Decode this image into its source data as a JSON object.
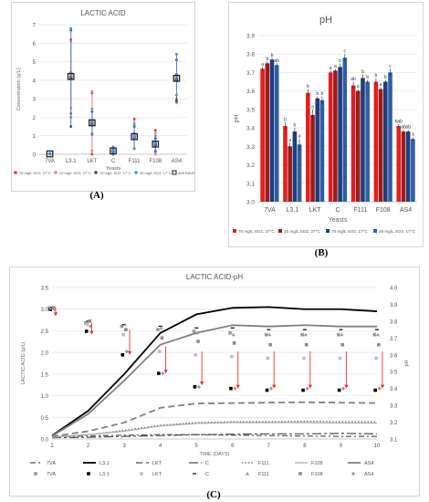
{
  "panel_labels": {
    "a": "(A)",
    "b": "(B)",
    "c": "(C)"
  },
  "chart_data": [
    {
      "id": "A",
      "type": "scatter",
      "title": "LACTIC ACID",
      "xlabel": "Yeasts",
      "ylabel": "Concentration (g/L)",
      "ylim": [
        0,
        7
      ],
      "yticks": [
        0,
        1,
        2,
        3,
        4,
        5,
        6,
        7
      ],
      "categories": [
        "7VA",
        "L3.1",
        "LKT",
        "C",
        "F111",
        "F108",
        "AS4"
      ],
      "grid": true,
      "legend_position": "bottom",
      "series": [
        {
          "name": "75 mg/L SO2, 27°C",
          "color": "#e8322c",
          "values": [
            0.02,
            4.2,
            1.6,
            0.15,
            1.1,
            0.6,
            4.1
          ],
          "err": [
            0.02,
            2.0,
            1.7,
            0.25,
            0.8,
            0.7,
            1.3
          ]
        },
        {
          "name": "25 mg/L SO2, 27°C",
          "color": "#e8838a",
          "values": [
            0.02,
            4.3,
            1.8,
            0.2,
            1.0,
            0.55,
            4.2
          ],
          "err": [
            0.02,
            1.8,
            1.6,
            0.2,
            0.7,
            0.6,
            1.2
          ]
        },
        {
          "name": "75 mg/L SO2, 17°C",
          "color": "#2e4f8c",
          "values": [
            0.02,
            4.1,
            1.7,
            0.15,
            0.9,
            0.5,
            4.0
          ],
          "err": [
            0.02,
            2.6,
            0.6,
            0.15,
            0.6,
            0.35,
            1.1
          ]
        },
        {
          "name": "25 mg/L SO2, 17°C",
          "color": "#4f8ed6",
          "values": [
            0.02,
            4.4,
            1.75,
            0.2,
            0.95,
            0.6,
            4.3
          ],
          "err": [
            0.02,
            2.4,
            0.7,
            0.2,
            0.65,
            0.4,
            1.1
          ]
        },
        {
          "name": "AVERAGE",
          "color": "#222222",
          "values": [
            0.02,
            4.2,
            1.7,
            0.18,
            0.95,
            0.55,
            4.1
          ],
          "err": [
            0,
            0,
            0,
            0,
            0,
            0,
            0
          ]
        }
      ]
    },
    {
      "id": "B",
      "type": "bar",
      "title": "pH",
      "xlabel": "Yeasts",
      "ylabel": "pH",
      "ylim": [
        3.0,
        3.9
      ],
      "yticks": [
        3.0,
        3.1,
        3.2,
        3.3,
        3.4,
        3.5,
        3.6,
        3.7,
        3.8,
        3.9
      ],
      "categories": [
        "7VA",
        "L3.1",
        "LKT",
        "C",
        "F111",
        "F108",
        "AS4"
      ],
      "grid": true,
      "legend_position": "bottom",
      "series": [
        {
          "name": "75 mg/L SO2, 27°C",
          "color": "#e02020",
          "values": [
            3.72,
            3.41,
            3.59,
            3.7,
            3.63,
            3.65,
            3.41
          ],
          "err": [
            0.01,
            0.02,
            0.02,
            0.01,
            0.02,
            0.02,
            0.01
          ],
          "labels": [
            "a",
            "b",
            "b",
            "a",
            "ab",
            "b",
            "bab"
          ]
        },
        {
          "name": "25 mg/L SO2, 27°C",
          "color": "#9e1b1b",
          "values": [
            3.75,
            3.3,
            3.47,
            3.71,
            3.6,
            3.61,
            3.38
          ],
          "err": [
            0.01,
            0.02,
            0.03,
            0.01,
            0.01,
            0.01,
            0.01
          ],
          "labels": [
            "b",
            "a",
            "a",
            "a",
            "a",
            "a",
            "ab"
          ]
        },
        {
          "name": "75 mg/L SO2, 17°C",
          "color": "#1f3e7a",
          "values": [
            3.77,
            3.38,
            3.56,
            3.73,
            3.67,
            3.65,
            3.38
          ],
          "err": [
            0.01,
            0.02,
            0.01,
            0.02,
            0.02,
            0.01,
            0.01
          ],
          "labels": [
            "b",
            "b",
            "b",
            "b",
            "b",
            "b",
            "ab"
          ]
        },
        {
          "name": "25 mg/L SO2, 17°C",
          "color": "#2f5ea8",
          "values": [
            3.74,
            3.31,
            3.55,
            3.78,
            3.65,
            3.7,
            3.34
          ],
          "err": [
            0.01,
            0.03,
            0.02,
            0.02,
            0.01,
            0.02,
            0.01
          ],
          "labels": [
            "ab",
            "a",
            "b",
            "c",
            "b",
            "c",
            "a"
          ]
        }
      ]
    },
    {
      "id": "C",
      "type": "line",
      "title": "LACTIC ACID-pH",
      "xlabel": "TIME (DAYS)",
      "ylabel": "LACTIC ACID (g/L)",
      "y2label": "pH",
      "xlim": [
        1,
        10
      ],
      "ylim": [
        0,
        3.5
      ],
      "y2lim": [
        3.1,
        4.0
      ],
      "xticks": [
        1,
        2,
        3,
        4,
        5,
        6,
        7,
        8,
        9,
        10
      ],
      "yticks": [
        0.0,
        0.5,
        1.0,
        1.5,
        2.0,
        2.5,
        3.0,
        3.5
      ],
      "y2ticks": [
        3.1,
        3.2,
        3.3,
        3.4,
        3.5,
        3.6,
        3.7,
        3.8,
        3.9,
        4.0
      ],
      "grid": true,
      "legend_position": "bottom",
      "lines": [
        {
          "name": "7VA",
          "color": "#555555",
          "dash": "6,3,2,3",
          "width": 1.2,
          "values": [
            0.05,
            0.07,
            0.09,
            0.1,
            0.1,
            0.09,
            0.08,
            0.07,
            0.06,
            0.06
          ]
        },
        {
          "name": "L3.1",
          "color": "#000000",
          "dash": "",
          "width": 1.8,
          "values": [
            0.08,
            0.65,
            1.5,
            2.45,
            2.88,
            3.03,
            3.05,
            3.0,
            3.0,
            2.95
          ]
        },
        {
          "name": "LKT",
          "color": "#808080",
          "dash": "7,4",
          "width": 1.8,
          "values": [
            0.06,
            0.18,
            0.38,
            0.72,
            0.82,
            0.83,
            0.84,
            0.85,
            0.84,
            0.83
          ]
        },
        {
          "name": "C",
          "color": "#4d4d4d",
          "dash": "10,3,3,3",
          "width": 1.2,
          "values": [
            0.03,
            0.04,
            0.06,
            0.08,
            0.1,
            0.11,
            0.12,
            0.12,
            0.13,
            0.12
          ]
        },
        {
          "name": "F111",
          "color": "#666666",
          "dash": "1.5,2",
          "width": 1.2,
          "values": [
            0.05,
            0.1,
            0.2,
            0.32,
            0.38,
            0.4,
            0.4,
            0.41,
            0.4,
            0.4
          ]
        },
        {
          "name": "F108",
          "color": "#aaaaaa",
          "dash": "",
          "width": 1.2,
          "values": [
            0.04,
            0.1,
            0.18,
            0.3,
            0.36,
            0.38,
            0.38,
            0.38,
            0.37,
            0.37
          ]
        },
        {
          "name": "AS4",
          "color": "#808080",
          "dash": "",
          "width": 1.8,
          "values": [
            0.07,
            0.58,
            1.35,
            2.18,
            2.45,
            2.63,
            2.6,
            2.63,
            2.6,
            2.6
          ]
        }
      ],
      "ph_points": [
        {
          "name": "7VA",
          "marker": "square",
          "color": "#999999",
          "values": [
            3.88,
            3.79,
            3.77,
            3.75,
            3.74,
            3.73,
            3.72,
            3.72,
            3.72,
            3.72
          ]
        },
        {
          "name": "L3.1",
          "marker": "square",
          "color": "#000000",
          "values": [
            3.87,
            3.74,
            3.6,
            3.49,
            3.41,
            3.4,
            3.39,
            3.39,
            3.39,
            3.39
          ]
        },
        {
          "name": "LKT",
          "marker": "square",
          "color": "#bfbfbf",
          "values": [
            3.88,
            3.78,
            3.72,
            3.62,
            3.6,
            3.59,
            3.58,
            3.58,
            3.58,
            3.58
          ]
        },
        {
          "name": "C",
          "marker": "dash",
          "color": "#000000",
          "values": [
            3.88,
            3.8,
            3.78,
            3.77,
            3.76,
            3.76,
            3.75,
            3.75,
            3.75,
            3.75
          ]
        },
        {
          "name": "F111",
          "marker": "triangle",
          "color": "#999999",
          "values": [
            3.88,
            3.8,
            3.78,
            3.76,
            3.73,
            3.72,
            3.72,
            3.72,
            3.72,
            3.72
          ]
        },
        {
          "name": "F108",
          "marker": "square",
          "color": "#8c8c8c",
          "values": [
            3.88,
            3.8,
            3.75,
            3.7,
            3.68,
            3.67,
            3.66,
            3.66,
            3.66,
            3.66
          ]
        },
        {
          "name": "AS4",
          "marker": "diamond",
          "color": "#999999",
          "values": [
            3.87,
            3.77,
            3.62,
            3.49,
            3.41,
            3.4,
            3.4,
            3.4,
            3.4,
            3.4
          ]
        }
      ],
      "arrows": [
        {
          "day": 1.1,
          "from": 3.88,
          "to": 3.83
        },
        {
          "day": 2.1,
          "from": 3.79,
          "to": 3.72
        },
        {
          "day": 3.15,
          "from": 3.75,
          "to": 3.6
        },
        {
          "day": 4.15,
          "from": 3.65,
          "to": 3.49
        },
        {
          "day": 5.15,
          "from": 3.62,
          "to": 3.42
        },
        {
          "day": 6.15,
          "from": 3.62,
          "to": 3.4
        },
        {
          "day": 7.15,
          "from": 3.62,
          "to": 3.4
        },
        {
          "day": 8.15,
          "from": 3.62,
          "to": 3.4
        },
        {
          "day": 9.15,
          "from": 3.62,
          "to": 3.4
        },
        {
          "day": 10.15,
          "from": 3.62,
          "to": 3.4
        }
      ]
    }
  ]
}
